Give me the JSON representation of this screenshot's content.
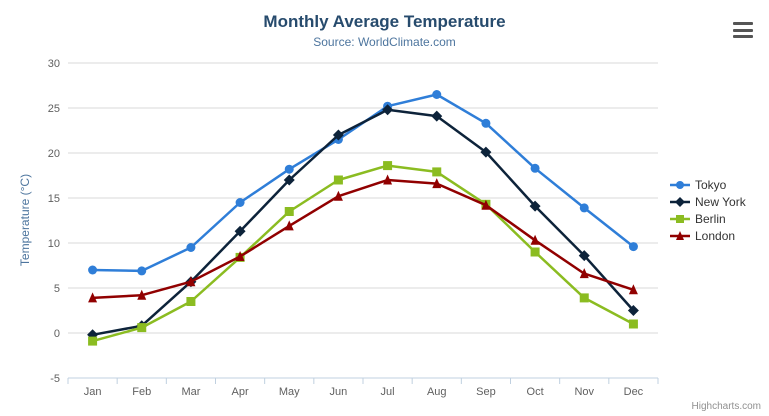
{
  "header": {
    "title": "Monthly Average Temperature",
    "subtitle": "Source: WorldClimate.com"
  },
  "credits_label": "Highcharts.com",
  "export_menu": {
    "icon": "hamburger-icon"
  },
  "chart_data": {
    "type": "line",
    "title": "Monthly Average Temperature",
    "subtitle": "Source: WorldClimate.com",
    "xlabel": "",
    "ylabel": "Temperature (°C)",
    "categories": [
      "Jan",
      "Feb",
      "Mar",
      "Apr",
      "May",
      "Jun",
      "Jul",
      "Aug",
      "Sep",
      "Oct",
      "Nov",
      "Dec"
    ],
    "ylim": [
      -5,
      30
    ],
    "yticks": [
      -5,
      0,
      5,
      10,
      15,
      20,
      25,
      30
    ],
    "grid": true,
    "legend_position": "right",
    "series": [
      {
        "name": "Tokyo",
        "color": "#2f7ed8",
        "marker": "circle",
        "values": [
          7.0,
          6.9,
          9.5,
          14.5,
          18.2,
          21.5,
          25.2,
          26.5,
          23.3,
          18.3,
          13.9,
          9.6
        ]
      },
      {
        "name": "New York",
        "color": "#0d233a",
        "marker": "diamond",
        "values": [
          -0.2,
          0.8,
          5.7,
          11.3,
          17.0,
          22.0,
          24.8,
          24.1,
          20.1,
          14.1,
          8.6,
          2.5
        ]
      },
      {
        "name": "Berlin",
        "color": "#8bbc21",
        "marker": "square",
        "values": [
          -0.9,
          0.6,
          3.5,
          8.4,
          13.5,
          17.0,
          18.6,
          17.9,
          14.3,
          9.0,
          3.9,
          1.0
        ]
      },
      {
        "name": "London",
        "color": "#910000",
        "marker": "triangle",
        "values": [
          3.9,
          4.2,
          5.7,
          8.5,
          11.9,
          15.2,
          17.0,
          16.6,
          14.2,
          10.3,
          6.6,
          4.8
        ]
      }
    ],
    "style": {
      "grid_color": "#d8d8d8",
      "axis_line_color": "#c0d0e0",
      "axis_label_color": "#606060",
      "title_color": "#274b6d",
      "subtitle_color": "#4d759e",
      "legend_text_color": "#333333",
      "credits_color": "#909090"
    }
  }
}
